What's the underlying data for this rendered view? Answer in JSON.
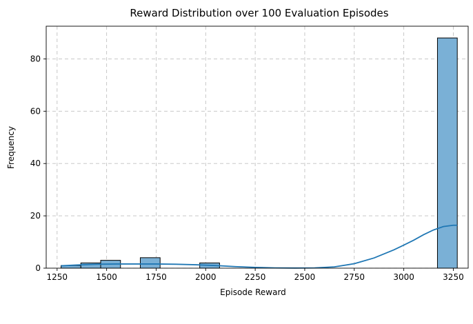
{
  "chart_data": {
    "type": "bar",
    "title": "Reward Distribution over 100 Evaluation Episodes",
    "xlabel": "Episode Reward",
    "ylabel": "Frequency",
    "xlim": [
      1195,
      3325
    ],
    "ylim": [
      0,
      92.5
    ],
    "x_ticks": [
      1250,
      1500,
      1750,
      2000,
      2250,
      2500,
      2750,
      3000,
      3250
    ],
    "y_ticks": [
      0,
      20,
      40,
      60,
      80
    ],
    "grid": true,
    "bin_width": 100,
    "bins": [
      {
        "start": 1270,
        "end": 1370,
        "count": 1
      },
      {
        "start": 1370,
        "end": 1470,
        "count": 2
      },
      {
        "start": 1470,
        "end": 1570,
        "count": 3
      },
      {
        "start": 1670,
        "end": 1770,
        "count": 4
      },
      {
        "start": 1970,
        "end": 2070,
        "count": 2
      },
      {
        "start": 3170,
        "end": 3270,
        "count": 88
      }
    ],
    "kde": {
      "x": [
        1270,
        1350,
        1450,
        1550,
        1650,
        1750,
        1850,
        1950,
        2050,
        2150,
        2250,
        2350,
        2450,
        2550,
        2650,
        2750,
        2850,
        2950,
        3000,
        3050,
        3100,
        3150,
        3200,
        3250,
        3270
      ],
      "y": [
        0.9,
        1.2,
        1.5,
        1.6,
        1.6,
        1.6,
        1.5,
        1.3,
        1.0,
        0.6,
        0.3,
        0.1,
        0.05,
        0.1,
        0.5,
        1.7,
        3.9,
        7.0,
        8.8,
        10.7,
        12.8,
        14.6,
        15.9,
        16.4,
        16.4
      ]
    }
  }
}
